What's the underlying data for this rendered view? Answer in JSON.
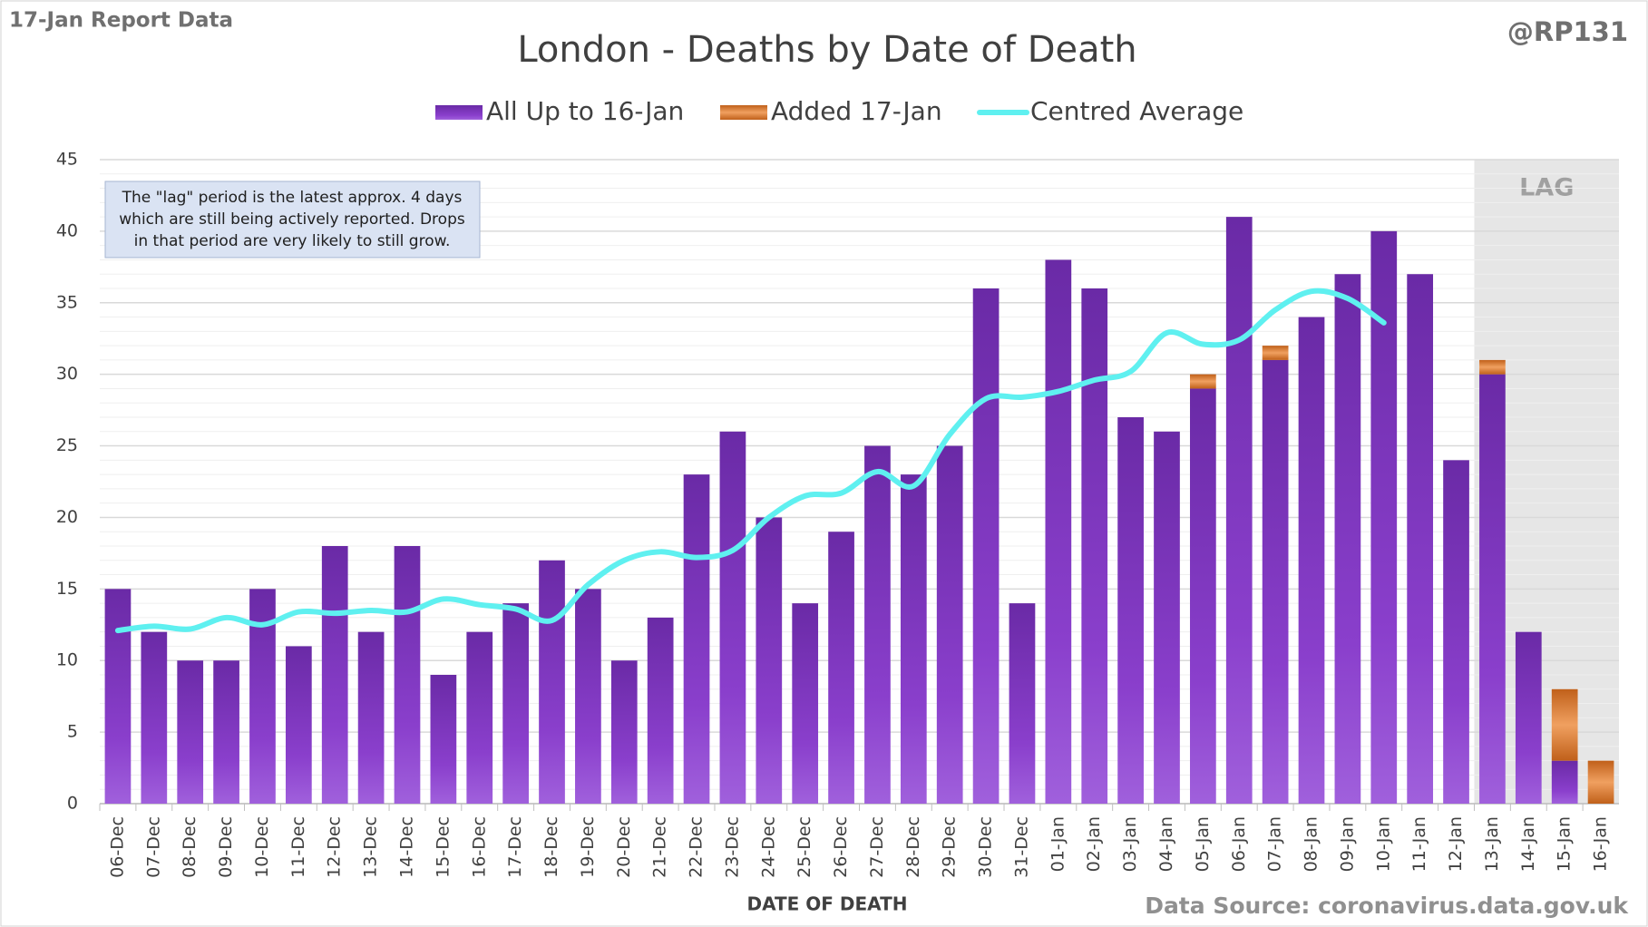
{
  "chart_data": {
    "type": "bar",
    "title": "London - Deaths by Date of Death",
    "corner_label": "17-Jan Report Data",
    "author": "@RP131",
    "source": "Data Source: coronavirus.data.gov.uk",
    "xlabel": "DATE OF DEATH",
    "lag_label": "LAG",
    "annotation": [
      "The \"lag\" period is the latest approx. 4 days",
      "which are still being actively reported.  Drops",
      "in that period are very likely to still grow."
    ],
    "categories": [
      "06-Dec",
      "07-Dec",
      "08-Dec",
      "09-Dec",
      "10-Dec",
      "11-Dec",
      "12-Dec",
      "13-Dec",
      "14-Dec",
      "15-Dec",
      "16-Dec",
      "17-Dec",
      "18-Dec",
      "19-Dec",
      "20-Dec",
      "21-Dec",
      "22-Dec",
      "23-Dec",
      "24-Dec",
      "25-Dec",
      "26-Dec",
      "27-Dec",
      "28-Dec",
      "29-Dec",
      "30-Dec",
      "31-Dec",
      "01-Jan",
      "02-Jan",
      "03-Jan",
      "04-Jan",
      "05-Jan",
      "06-Jan",
      "07-Jan",
      "08-Jan",
      "09-Jan",
      "10-Jan",
      "11-Jan",
      "12-Jan",
      "13-Jan",
      "14-Jan",
      "15-Jan",
      "16-Jan"
    ],
    "series": [
      {
        "name": "All Up to 16-Jan",
        "color": "#7b35b8",
        "values": [
          15,
          12,
          10,
          10,
          15,
          11,
          18,
          12,
          18,
          9,
          12,
          14,
          17,
          15,
          10,
          13,
          23,
          26,
          20,
          14,
          19,
          25,
          23,
          25,
          36,
          14,
          38,
          36,
          27,
          26,
          29,
          41,
          31,
          34,
          37,
          40,
          37,
          24,
          30,
          12,
          3,
          0
        ]
      },
      {
        "name": "Added 17-Jan",
        "color": "#e07a30",
        "values": [
          0,
          0,
          0,
          0,
          0,
          0,
          0,
          0,
          0,
          0,
          0,
          0,
          0,
          0,
          0,
          0,
          0,
          0,
          0,
          0,
          0,
          0,
          0,
          0,
          0,
          0,
          0,
          0,
          0,
          0,
          1,
          0,
          1,
          0,
          0,
          0,
          0,
          0,
          1,
          0,
          5,
          3
        ]
      },
      {
        "name": "Centred Average",
        "type": "line",
        "color": "#5ff0f0",
        "values": [
          12.1,
          12.4,
          12.2,
          13.0,
          12.5,
          13.4,
          13.3,
          13.5,
          13.4,
          14.3,
          13.9,
          13.6,
          12.8,
          15.3,
          17.0,
          17.6,
          17.2,
          17.7,
          20.0,
          21.5,
          21.7,
          23.2,
          22.2,
          25.8,
          28.3,
          28.4,
          28.8,
          29.6,
          30.2,
          32.9,
          32.1,
          32.4,
          34.5,
          35.8,
          35.3,
          33.6,
          null,
          null,
          null,
          null,
          null,
          null
        ]
      }
    ],
    "ylim": [
      0,
      45
    ],
    "yticks": [
      0,
      5,
      10,
      15,
      20,
      25,
      30,
      35,
      40,
      45
    ],
    "grid": true
  }
}
